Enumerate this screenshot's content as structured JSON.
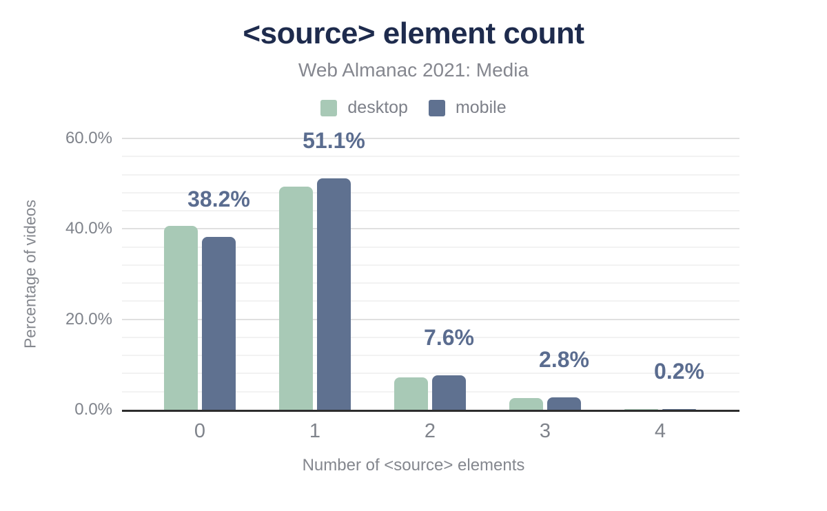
{
  "header": {
    "title": "<source> element count",
    "subtitle": "Web Almanac 2021: Media"
  },
  "legend": [
    {
      "label": "desktop",
      "color": "#a8c9b6"
    },
    {
      "label": "mobile",
      "color": "#5f7190"
    }
  ],
  "chart_data": {
    "type": "bar",
    "title": "<source> element count",
    "subtitle": "Web Almanac 2021: Media",
    "categories": [
      "0",
      "1",
      "2",
      "3",
      "4"
    ],
    "series": [
      {
        "name": "desktop",
        "color": "#a8c9b6",
        "values": [
          40.7,
          49.4,
          7.1,
          2.6,
          0.2
        ]
      },
      {
        "name": "mobile",
        "color": "#5f7190",
        "values": [
          38.2,
          51.1,
          7.6,
          2.8,
          0.2
        ]
      }
    ],
    "annotations": {
      "series": "mobile",
      "labels": [
        "38.2%",
        "51.1%",
        "7.6%",
        "2.8%",
        "0.2%"
      ]
    },
    "xlabel": "Number of <source> elements",
    "ylabel": "Percentage of videos",
    "ylim": [
      0,
      60
    ],
    "yticks": [
      {
        "value": 0,
        "label": "0.0%"
      },
      {
        "value": 20,
        "label": "20.0%"
      },
      {
        "value": 40,
        "label": "40.0%"
      },
      {
        "value": 60,
        "label": "60.0%"
      }
    ],
    "minor_grid_step": 4,
    "grid": "on",
    "legend_position": "top"
  },
  "colors": {
    "title": "#1e2b4d",
    "muted_text": "#85878f",
    "tick_text": "#7f838b",
    "annotation": "#5a6c8f",
    "grid_major": "#e0e0e0",
    "grid_minor": "#f2f2f2",
    "axis": "#2d2d2d",
    "background": "#ffffff"
  }
}
